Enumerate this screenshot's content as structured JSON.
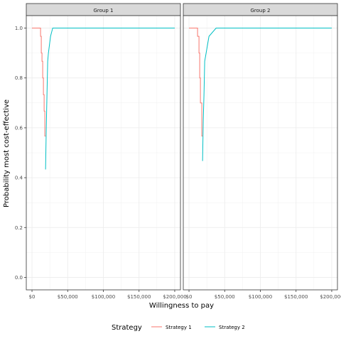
{
  "chart_data": {
    "type": "line",
    "xlabel": "Willingness to pay",
    "ylabel": "Probability most cost-effective",
    "xlim": [
      -8000,
      208000
    ],
    "ylim": [
      -0.05,
      1.05
    ],
    "x_ticks": [
      0,
      50000,
      100000,
      150000,
      200000
    ],
    "x_tick_labels": [
      "$0",
      "$50,000",
      "$100,000",
      "$150,000",
      "$200,000"
    ],
    "y_ticks": [
      0.0,
      0.2,
      0.4,
      0.6,
      0.8,
      1.0
    ],
    "y_tick_labels": [
      "0.0",
      "0.2",
      "0.4",
      "0.6",
      "0.8",
      "1.0"
    ],
    "grid": true,
    "legend": {
      "title": "Strategy",
      "position": "bottom",
      "entries": [
        {
          "name": "Strategy 1",
          "color": "#F8766D"
        },
        {
          "name": "Strategy 2",
          "color": "#00BFC4"
        }
      ]
    },
    "panels": [
      {
        "title": "Group 1",
        "series": [
          {
            "name": "Strategy 1",
            "color": "#F8766D",
            "x": [
              0,
              12000,
              12000,
              13000,
              13000,
              14000,
              14000,
              15000,
              15000,
              16000,
              16000,
              17000,
              17000,
              18000,
              18000,
              19000
            ],
            "y": [
              1.0,
              1.0,
              0.967,
              0.967,
              0.9,
              0.9,
              0.867,
              0.867,
              0.8,
              0.8,
              0.733,
              0.733,
              0.667,
              0.667,
              0.567,
              0.567
            ]
          },
          {
            "name": "Strategy 2",
            "color": "#00BFC4",
            "x": [
              19000,
              19000,
              20000,
              20000,
              21000,
              21000,
              22000,
              22000,
              23000,
              23000,
              26000,
              26000,
              29000,
              29000,
              200000
            ],
            "y": [
              0.433,
              0.433,
              0.6,
              0.6,
              0.733,
              0.733,
              0.867,
              0.867,
              0.9,
              0.9,
              0.967,
              0.967,
              1.0,
              1.0,
              1.0
            ]
          }
        ]
      },
      {
        "title": "Group 2",
        "series": [
          {
            "name": "Strategy 1",
            "color": "#F8766D",
            "x": [
              0,
              12000,
              12000,
              14000,
              14000,
              15000,
              15000,
              16000,
              16000,
              18000,
              18000,
              19000
            ],
            "y": [
              1.0,
              1.0,
              0.967,
              0.967,
              0.9,
              0.9,
              0.8,
              0.8,
              0.7,
              0.7,
              0.567,
              0.567
            ]
          },
          {
            "name": "Strategy 2",
            "color": "#00BFC4",
            "x": [
              19000,
              19000,
              20000,
              20000,
              21000,
              21000,
              22000,
              22000,
              24000,
              24000,
              28000,
              28000,
              38000,
              38000,
              200000
            ],
            "y": [
              0.467,
              0.467,
              0.633,
              0.633,
              0.733,
              0.733,
              0.867,
              0.867,
              0.9,
              0.9,
              0.967,
              0.967,
              1.0,
              1.0,
              1.0
            ]
          }
        ]
      }
    ]
  }
}
